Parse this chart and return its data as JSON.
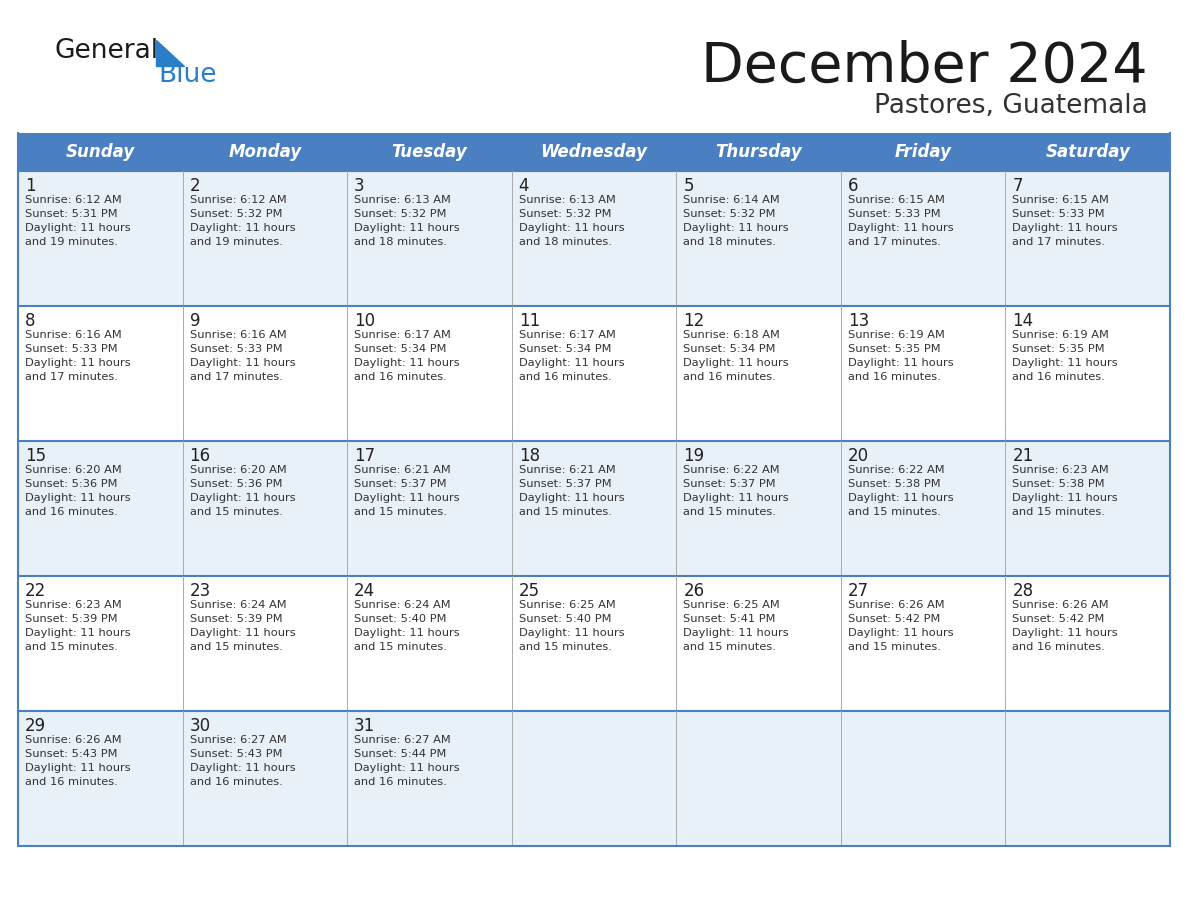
{
  "title": "December 2024",
  "subtitle": "Pastores, Guatemala",
  "header_bg_color": "#4a7fc1",
  "header_text_color": "#ffffff",
  "cell_bg_color_light": "#e8f0f8",
  "cell_bg_color_white": "#ffffff",
  "border_color": "#4a7fc1",
  "grid_line_color": "#aaaaaa",
  "day_names": [
    "Sunday",
    "Monday",
    "Tuesday",
    "Wednesday",
    "Thursday",
    "Friday",
    "Saturday"
  ],
  "title_color": "#1a1a1a",
  "subtitle_color": "#333333",
  "day_number_color": "#222222",
  "cell_text_color": "#333333",
  "logo_general_color": "#1a1a1a",
  "logo_blue_color": "#2a7dc9",
  "weeks": [
    [
      {
        "day": 1,
        "sunrise": "6:12 AM",
        "sunset": "5:31 PM",
        "daylight_hours": 11,
        "daylight_minutes": 19
      },
      {
        "day": 2,
        "sunrise": "6:12 AM",
        "sunset": "5:32 PM",
        "daylight_hours": 11,
        "daylight_minutes": 19
      },
      {
        "day": 3,
        "sunrise": "6:13 AM",
        "sunset": "5:32 PM",
        "daylight_hours": 11,
        "daylight_minutes": 18
      },
      {
        "day": 4,
        "sunrise": "6:13 AM",
        "sunset": "5:32 PM",
        "daylight_hours": 11,
        "daylight_minutes": 18
      },
      {
        "day": 5,
        "sunrise": "6:14 AM",
        "sunset": "5:32 PM",
        "daylight_hours": 11,
        "daylight_minutes": 18
      },
      {
        "day": 6,
        "sunrise": "6:15 AM",
        "sunset": "5:33 PM",
        "daylight_hours": 11,
        "daylight_minutes": 17
      },
      {
        "day": 7,
        "sunrise": "6:15 AM",
        "sunset": "5:33 PM",
        "daylight_hours": 11,
        "daylight_minutes": 17
      }
    ],
    [
      {
        "day": 8,
        "sunrise": "6:16 AM",
        "sunset": "5:33 PM",
        "daylight_hours": 11,
        "daylight_minutes": 17
      },
      {
        "day": 9,
        "sunrise": "6:16 AM",
        "sunset": "5:33 PM",
        "daylight_hours": 11,
        "daylight_minutes": 17
      },
      {
        "day": 10,
        "sunrise": "6:17 AM",
        "sunset": "5:34 PM",
        "daylight_hours": 11,
        "daylight_minutes": 16
      },
      {
        "day": 11,
        "sunrise": "6:17 AM",
        "sunset": "5:34 PM",
        "daylight_hours": 11,
        "daylight_minutes": 16
      },
      {
        "day": 12,
        "sunrise": "6:18 AM",
        "sunset": "5:34 PM",
        "daylight_hours": 11,
        "daylight_minutes": 16
      },
      {
        "day": 13,
        "sunrise": "6:19 AM",
        "sunset": "5:35 PM",
        "daylight_hours": 11,
        "daylight_minutes": 16
      },
      {
        "day": 14,
        "sunrise": "6:19 AM",
        "sunset": "5:35 PM",
        "daylight_hours": 11,
        "daylight_minutes": 16
      }
    ],
    [
      {
        "day": 15,
        "sunrise": "6:20 AM",
        "sunset": "5:36 PM",
        "daylight_hours": 11,
        "daylight_minutes": 16
      },
      {
        "day": 16,
        "sunrise": "6:20 AM",
        "sunset": "5:36 PM",
        "daylight_hours": 11,
        "daylight_minutes": 15
      },
      {
        "day": 17,
        "sunrise": "6:21 AM",
        "sunset": "5:37 PM",
        "daylight_hours": 11,
        "daylight_minutes": 15
      },
      {
        "day": 18,
        "sunrise": "6:21 AM",
        "sunset": "5:37 PM",
        "daylight_hours": 11,
        "daylight_minutes": 15
      },
      {
        "day": 19,
        "sunrise": "6:22 AM",
        "sunset": "5:37 PM",
        "daylight_hours": 11,
        "daylight_minutes": 15
      },
      {
        "day": 20,
        "sunrise": "6:22 AM",
        "sunset": "5:38 PM",
        "daylight_hours": 11,
        "daylight_minutes": 15
      },
      {
        "day": 21,
        "sunrise": "6:23 AM",
        "sunset": "5:38 PM",
        "daylight_hours": 11,
        "daylight_minutes": 15
      }
    ],
    [
      {
        "day": 22,
        "sunrise": "6:23 AM",
        "sunset": "5:39 PM",
        "daylight_hours": 11,
        "daylight_minutes": 15
      },
      {
        "day": 23,
        "sunrise": "6:24 AM",
        "sunset": "5:39 PM",
        "daylight_hours": 11,
        "daylight_minutes": 15
      },
      {
        "day": 24,
        "sunrise": "6:24 AM",
        "sunset": "5:40 PM",
        "daylight_hours": 11,
        "daylight_minutes": 15
      },
      {
        "day": 25,
        "sunrise": "6:25 AM",
        "sunset": "5:40 PM",
        "daylight_hours": 11,
        "daylight_minutes": 15
      },
      {
        "day": 26,
        "sunrise": "6:25 AM",
        "sunset": "5:41 PM",
        "daylight_hours": 11,
        "daylight_minutes": 15
      },
      {
        "day": 27,
        "sunrise": "6:26 AM",
        "sunset": "5:42 PM",
        "daylight_hours": 11,
        "daylight_minutes": 15
      },
      {
        "day": 28,
        "sunrise": "6:26 AM",
        "sunset": "5:42 PM",
        "daylight_hours": 11,
        "daylight_minutes": 16
      }
    ],
    [
      {
        "day": 29,
        "sunrise": "6:26 AM",
        "sunset": "5:43 PM",
        "daylight_hours": 11,
        "daylight_minutes": 16
      },
      {
        "day": 30,
        "sunrise": "6:27 AM",
        "sunset": "5:43 PM",
        "daylight_hours": 11,
        "daylight_minutes": 16
      },
      {
        "day": 31,
        "sunrise": "6:27 AM",
        "sunset": "5:44 PM",
        "daylight_hours": 11,
        "daylight_minutes": 16
      },
      null,
      null,
      null,
      null
    ]
  ]
}
